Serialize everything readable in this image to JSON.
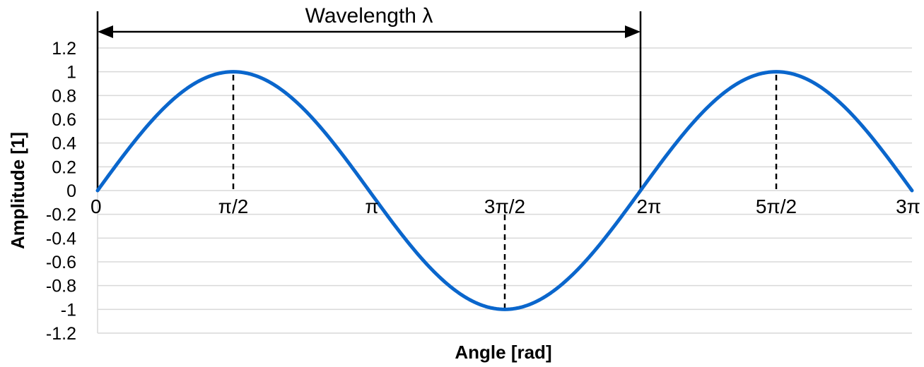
{
  "chart_data": {
    "type": "line",
    "title": "",
    "xlabel": "Angle [rad]",
    "ylabel": "Amplitude [1]",
    "xlim": [
      0,
      9.42478
    ],
    "ylim": [
      -1.2,
      1.2
    ],
    "grid": true,
    "y_ticks": [
      -1.2,
      -1,
      -0.8,
      -0.6,
      -0.4,
      -0.2,
      0,
      0.2,
      0.4,
      0.6,
      0.8,
      1,
      1.2
    ],
    "y_tick_labels": [
      "-1.2",
      "-1",
      "-0.8",
      "-0.6",
      "-0.4",
      "-0.2",
      "0",
      "0.2",
      "0.4",
      "0.6",
      "0.8",
      "1",
      "1.2"
    ],
    "x_ticks": [
      {
        "value": 0,
        "label": "0"
      },
      {
        "value": 1.5708,
        "label": "π/2"
      },
      {
        "value": 3.14159,
        "label": "π"
      },
      {
        "value": 4.71239,
        "label": "3π/2"
      },
      {
        "value": 6.28319,
        "label": "2π"
      },
      {
        "value": 7.85398,
        "label": "5π/2"
      },
      {
        "value": 9.42478,
        "label": "3π"
      }
    ],
    "series": [
      {
        "color": "#0a66cc",
        "function": "sin(x)",
        "x": [
          0,
          0.7854,
          1.5708,
          2.3562,
          3.14159,
          3.927,
          4.71239,
          5.4978,
          6.28319,
          7.0686,
          7.85398,
          8.6394,
          9.42478
        ],
        "y": [
          0,
          0.7071,
          1,
          0.7071,
          0,
          -0.7071,
          -1,
          -0.7071,
          0,
          0.7071,
          1,
          0.7071,
          0
        ]
      }
    ],
    "annotations": {
      "wavelength_label": "Wavelength λ",
      "wavelength_from": 0,
      "wavelength_to": 6.28319,
      "dashed_markers": [
        {
          "x": 1.5708,
          "y": 1
        },
        {
          "x": 4.71239,
          "y": -1
        },
        {
          "x": 7.85398,
          "y": 1
        }
      ]
    }
  }
}
